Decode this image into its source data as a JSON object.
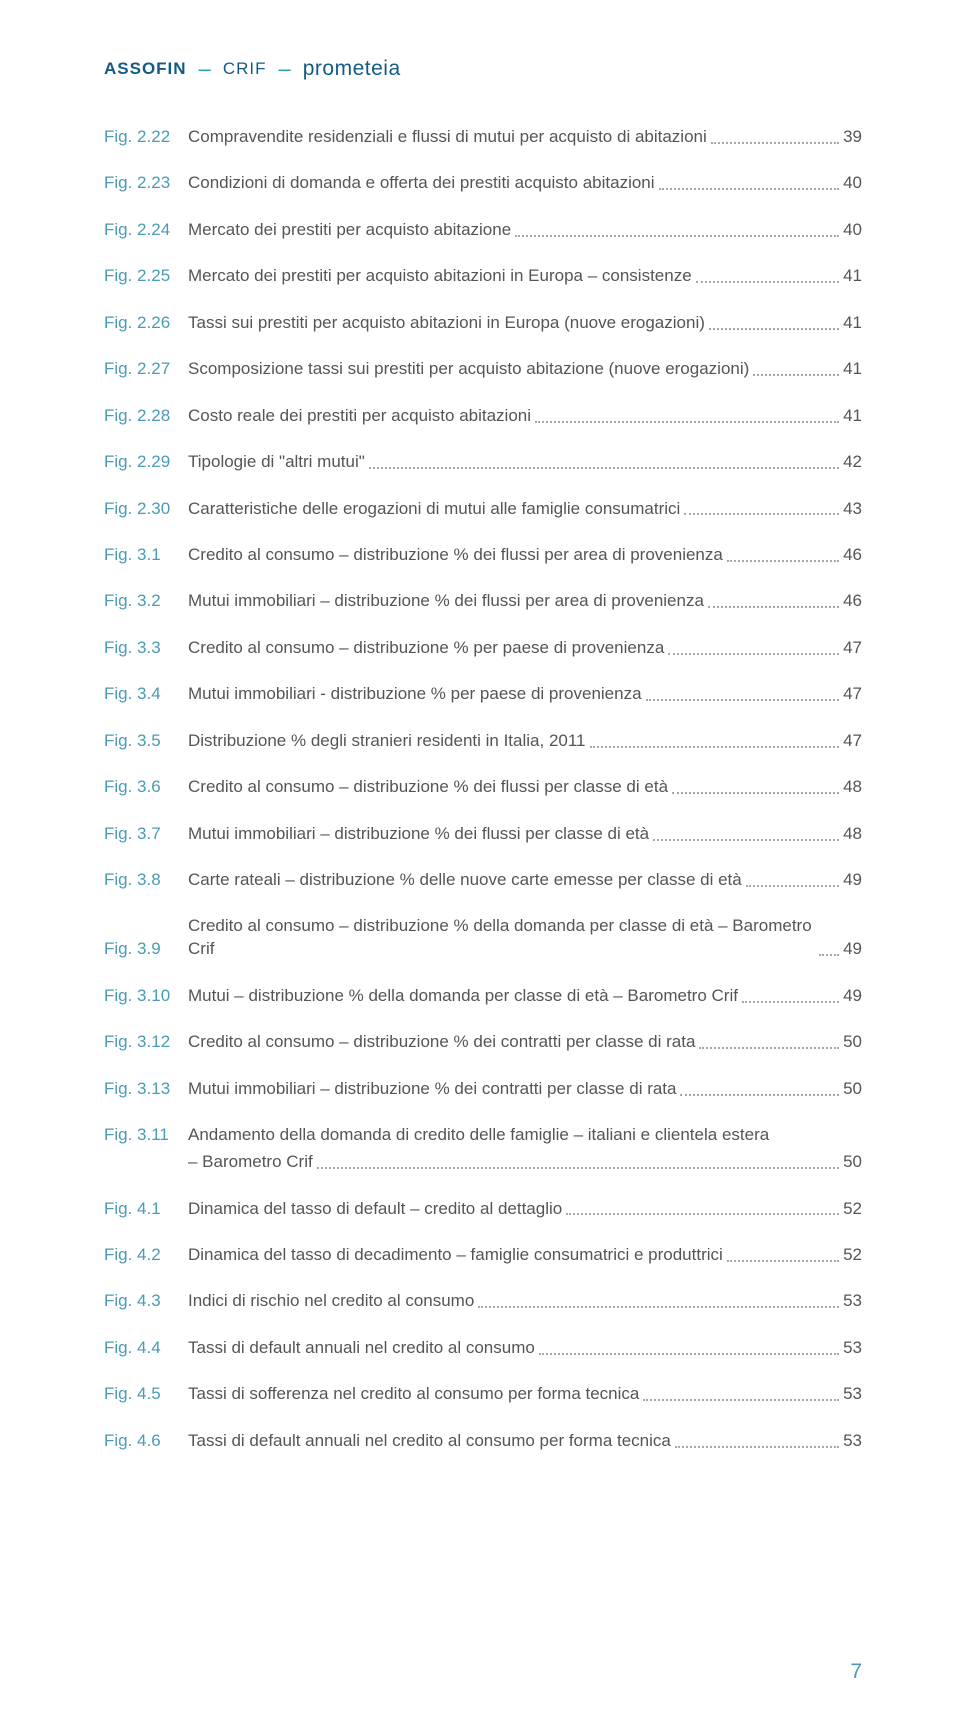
{
  "header": {
    "brand1": "ASSOFIN",
    "sep": "–",
    "brand2": "CRIF",
    "brand3": "prometeia"
  },
  "colors": {
    "brand_blue": "#135a88",
    "brand_teal": "#2ba7a7",
    "label_blue": "#4a9bb5",
    "text": "#555555",
    "leader": "#a7a7a7",
    "bg": "#ffffff"
  },
  "toc": [
    {
      "label": "Fig. 2.22",
      "title": "Compravendite residenziali e flussi di mutui per acquisto di abitazioni",
      "page": "39"
    },
    {
      "label": "Fig. 2.23",
      "title": "Condizioni di domanda e offerta dei prestiti acquisto abitazioni",
      "page": "40"
    },
    {
      "label": "Fig. 2.24",
      "title": "Mercato dei prestiti per acquisto abitazione",
      "page": "40"
    },
    {
      "label": "Fig. 2.25",
      "title": "Mercato dei prestiti per acquisto abitazioni in Europa – consistenze",
      "page": "41"
    },
    {
      "label": "Fig. 2.26",
      "title": "Tassi sui prestiti per acquisto abitazioni in Europa (nuove erogazioni)",
      "page": "41"
    },
    {
      "label": "Fig. 2.27",
      "title": "Scomposizione tassi sui prestiti per acquisto abitazione (nuove erogazioni)",
      "page": "41"
    },
    {
      "label": "Fig. 2.28",
      "title": "Costo reale dei prestiti per acquisto abitazioni",
      "page": "41"
    },
    {
      "label": "Fig. 2.29",
      "title": "Tipologie di \"altri mutui\"",
      "page": "42"
    },
    {
      "label": "Fig. 2.30",
      "title": "Caratteristiche delle erogazioni di mutui alle famiglie consumatrici",
      "page": "43"
    },
    {
      "label": "Fig. 3.1",
      "title": "Credito al consumo – distribuzione % dei flussi per area di provenienza",
      "page": "46"
    },
    {
      "label": "Fig. 3.2",
      "title": "Mutui immobiliari – distribuzione % dei flussi per area di provenienza",
      "page": "46"
    },
    {
      "label": "Fig. 3.3",
      "title": "Credito al consumo – distribuzione % per paese di provenienza",
      "page": "47"
    },
    {
      "label": "Fig. 3.4",
      "title": "Mutui immobiliari - distribuzione % per paese di provenienza",
      "page": "47"
    },
    {
      "label": "Fig. 3.5",
      "title": "Distribuzione % degli stranieri residenti in Italia, 2011",
      "page": "47"
    },
    {
      "label": "Fig. 3.6",
      "title": "Credito al consumo – distribuzione % dei flussi per classe di età",
      "page": "48"
    },
    {
      "label": "Fig. 3.7",
      "title": "Mutui immobiliari – distribuzione % dei flussi per classe di età",
      "page": "48"
    },
    {
      "label": "Fig. 3.8",
      "title": "Carte rateali – distribuzione % delle nuove carte emesse per classe di età",
      "page": "49"
    },
    {
      "label": "Fig. 3.9",
      "title": "Credito al consumo – distribuzione % della domanda per classe di età – Barometro Crif",
      "page": "49"
    },
    {
      "label": "Fig. 3.10",
      "title": "Mutui – distribuzione % della domanda per classe di età – Barometro Crif",
      "page": "49"
    },
    {
      "label": "Fig. 3.12",
      "title": "Credito al consumo – distribuzione % dei contratti per classe di rata",
      "page": "50"
    },
    {
      "label": "Fig. 3.13",
      "title": "Mutui immobiliari – distribuzione % dei contratti per classe di rata",
      "page": "50"
    },
    {
      "label": "Fig. 3.11",
      "title": "Andamento della domanda di credito delle famiglie – italiani e clientela estera",
      "title2": "– Barometro Crif",
      "page": "50"
    },
    {
      "label": "Fig. 4.1",
      "title": "Dinamica del tasso di default – credito al dettaglio",
      "page": "52"
    },
    {
      "label": "Fig. 4.2",
      "title": "Dinamica del tasso di decadimento – famiglie consumatrici e produttrici",
      "page": "52"
    },
    {
      "label": "Fig. 4.3",
      "title": "Indici di rischio nel credito al consumo",
      "page": "53"
    },
    {
      "label": "Fig. 4.4",
      "title": "Tassi di default annuali nel credito al consumo",
      "page": "53"
    },
    {
      "label": "Fig. 4.5",
      "title": "Tassi di sofferenza nel credito al consumo per forma tecnica",
      "page": "53"
    },
    {
      "label": "Fig. 4.6",
      "title": "Tassi di default annuali nel credito al consumo per forma tecnica",
      "page": "53"
    }
  ],
  "page_number": "7"
}
